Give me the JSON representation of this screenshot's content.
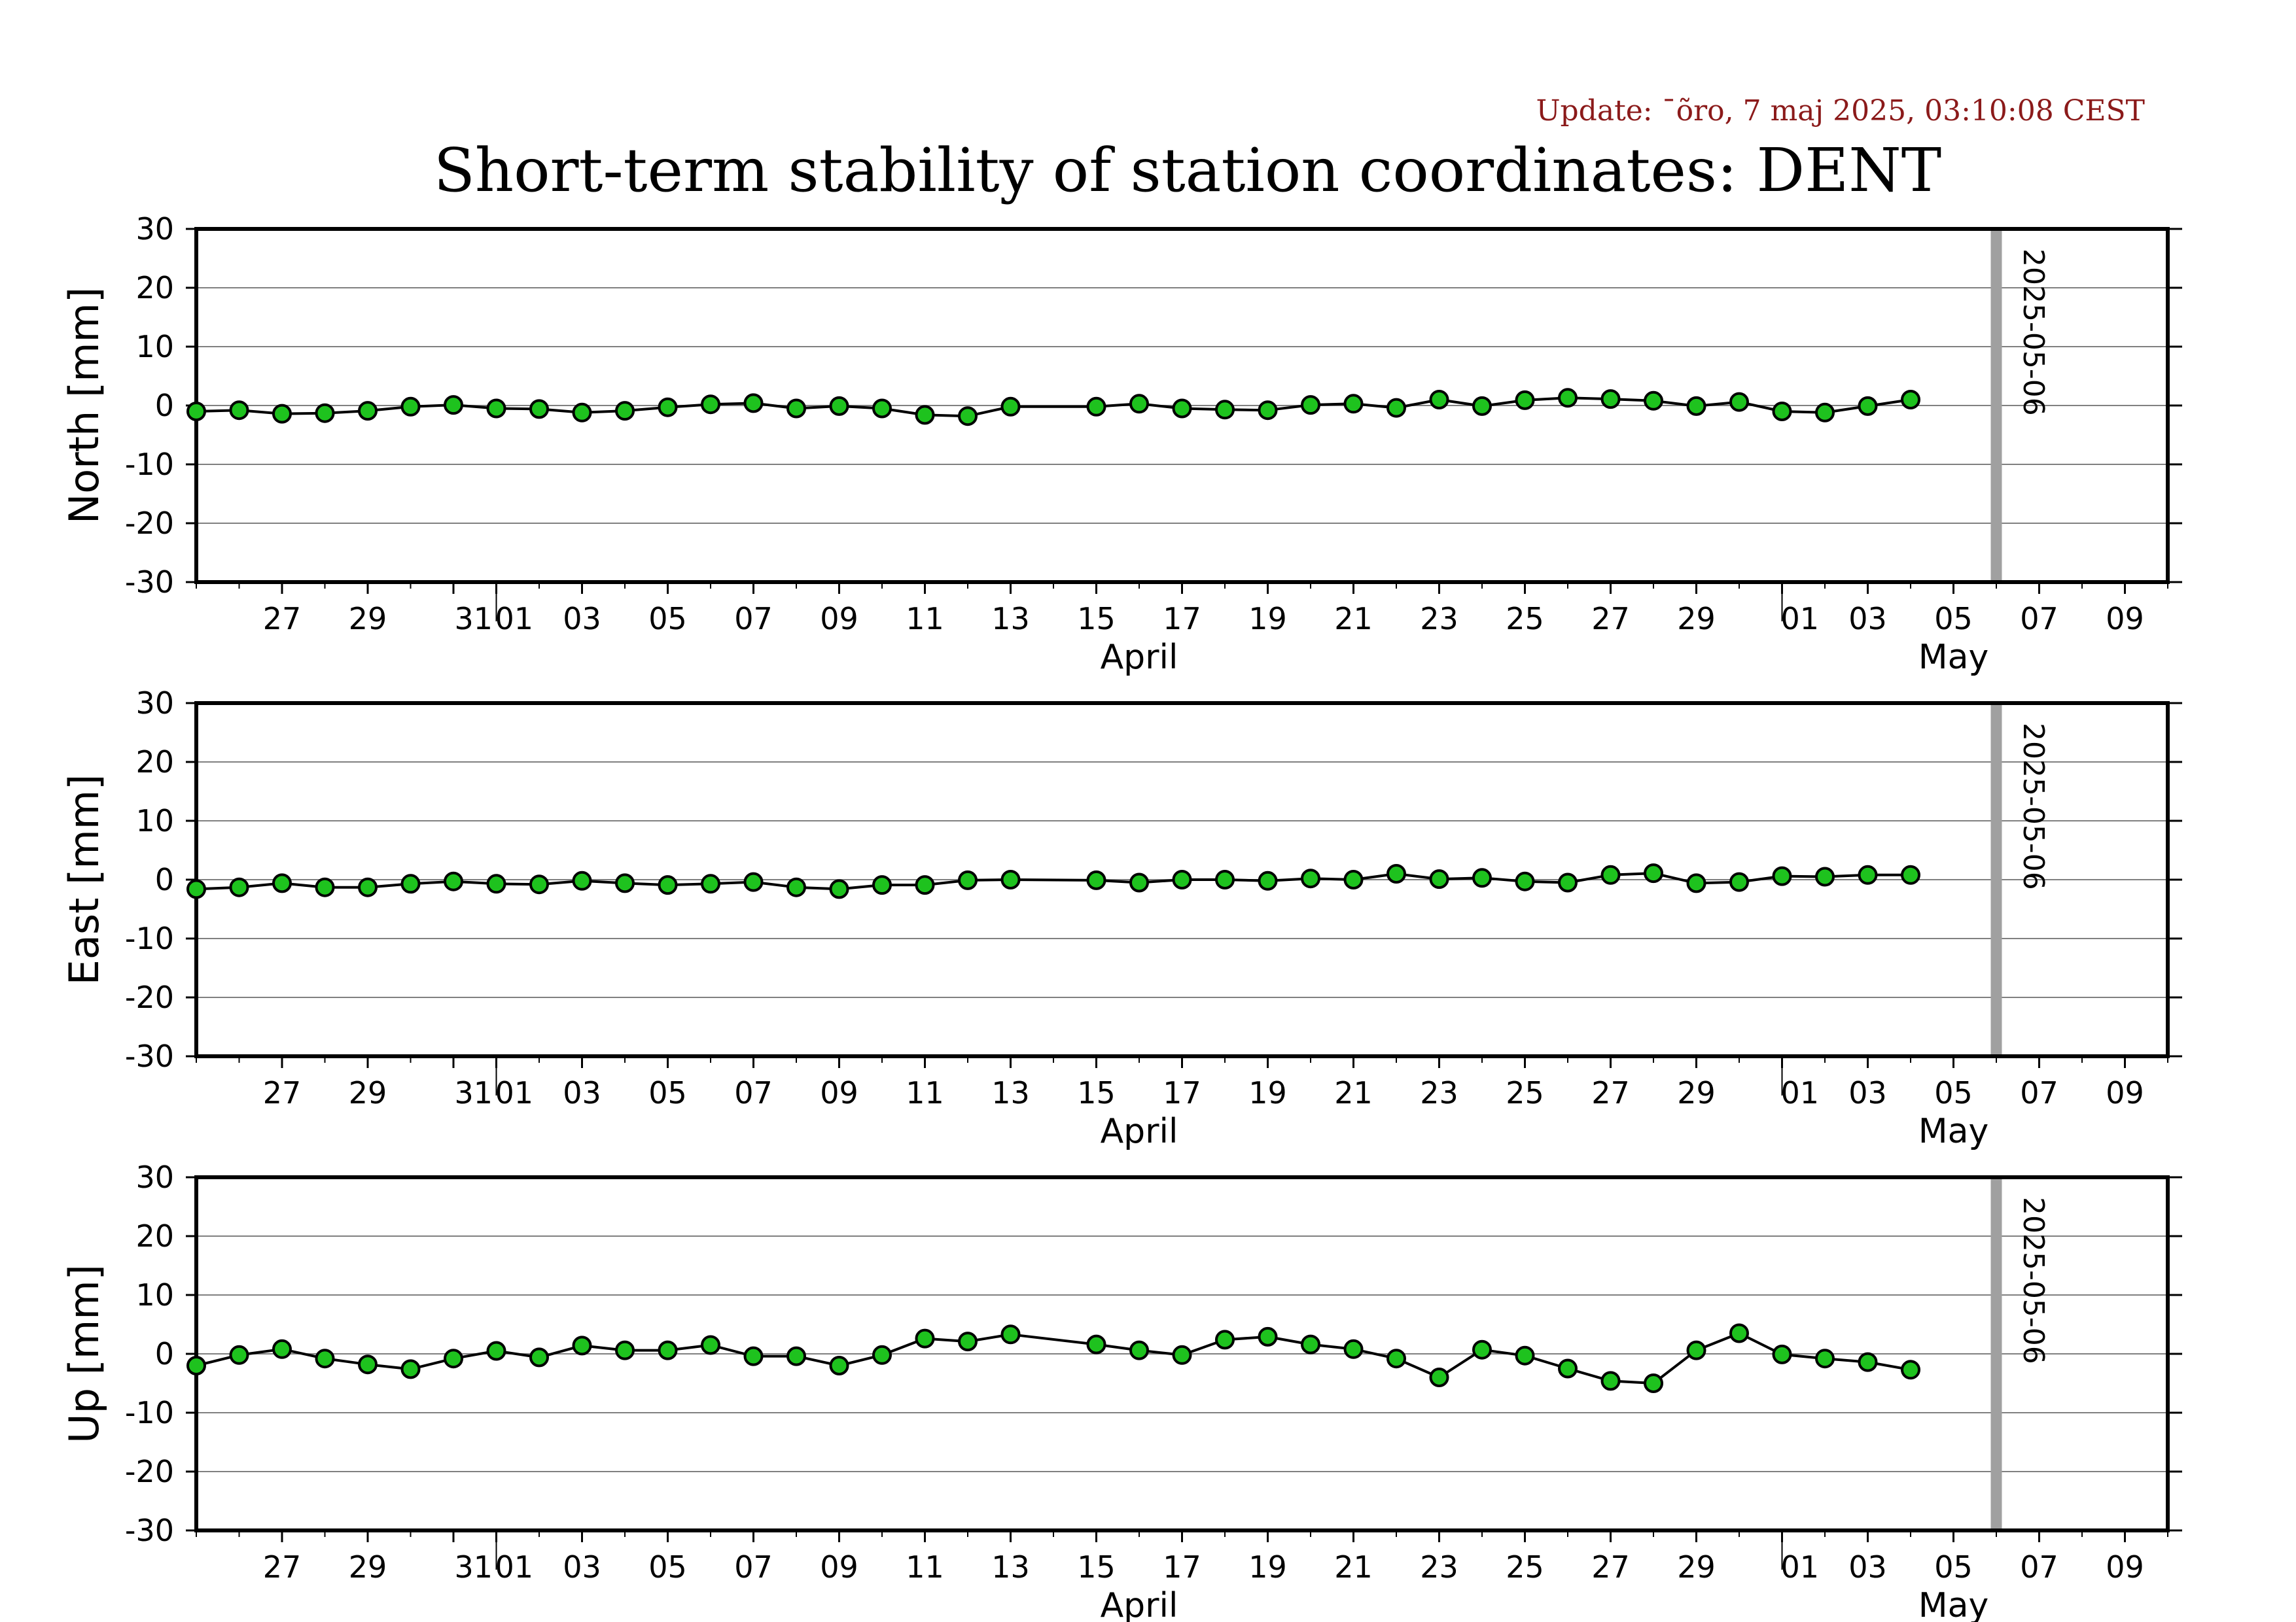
{
  "header": {
    "update": "Update: ¯õro, 7 maj 2025, 03:10:08 CEST",
    "title": "Short-term stability of station coordinates: DENT"
  },
  "colors": {
    "marker_fill": "#1ec21e",
    "marker_stroke": "#000000",
    "line": "#000000",
    "grid": "#808080",
    "ref_line": "#a0a0a0"
  },
  "chart_data": [
    {
      "type": "line",
      "ylabel": "North [mm]",
      "ylim": [
        -30,
        30
      ],
      "yticks": [
        -30,
        -20,
        -10,
        0,
        10,
        20,
        30
      ],
      "xlim": [
        "2025-03-25",
        "2025-05-10"
      ],
      "grid": true,
      "x_ticks": [
        {
          "date": "2025-03-27",
          "label": "27"
        },
        {
          "date": "2025-03-29",
          "label": "29"
        },
        {
          "date": "2025-03-31",
          "label": "31"
        },
        {
          "date": "2025-04-01",
          "label": "01"
        },
        {
          "date": "2025-04-03",
          "label": "03"
        },
        {
          "date": "2025-04-05",
          "label": "05"
        },
        {
          "date": "2025-04-07",
          "label": "07"
        },
        {
          "date": "2025-04-09",
          "label": "09"
        },
        {
          "date": "2025-04-11",
          "label": "11"
        },
        {
          "date": "2025-04-13",
          "label": "13"
        },
        {
          "date": "2025-04-15",
          "label": "15"
        },
        {
          "date": "2025-04-17",
          "label": "17"
        },
        {
          "date": "2025-04-19",
          "label": "19"
        },
        {
          "date": "2025-04-21",
          "label": "21"
        },
        {
          "date": "2025-04-23",
          "label": "23"
        },
        {
          "date": "2025-04-25",
          "label": "25"
        },
        {
          "date": "2025-04-27",
          "label": "27"
        },
        {
          "date": "2025-04-29",
          "label": "29"
        },
        {
          "date": "2025-05-01",
          "label": "01"
        },
        {
          "date": "2025-05-03",
          "label": "03"
        },
        {
          "date": "2025-05-05",
          "label": "05"
        },
        {
          "date": "2025-05-07",
          "label": "07"
        },
        {
          "date": "2025-05-09",
          "label": "09"
        }
      ],
      "month_labels": [
        {
          "label": "April",
          "date": "2025-04-16"
        },
        {
          "label": "May",
          "date": "2025-05-05"
        }
      ],
      "month_boundaries": [
        "2025-04-01",
        "2025-05-01"
      ],
      "reference_line": {
        "date": "2025-05-06",
        "label": "2025-05-06"
      },
      "series": [
        {
          "x": [
            "2025-03-25",
            "2025-03-26",
            "2025-03-27",
            "2025-03-28",
            "2025-03-29",
            "2025-03-30",
            "2025-03-31",
            "2025-04-01",
            "2025-04-02",
            "2025-04-03",
            "2025-04-04",
            "2025-04-05",
            "2025-04-06",
            "2025-04-07",
            "2025-04-08",
            "2025-04-09",
            "2025-04-10",
            "2025-04-11",
            "2025-04-12",
            "2025-04-13",
            "2025-04-15",
            "2025-04-16",
            "2025-04-17",
            "2025-04-18",
            "2025-04-19",
            "2025-04-20",
            "2025-04-21",
            "2025-04-22",
            "2025-04-23",
            "2025-04-24",
            "2025-04-25",
            "2025-04-26",
            "2025-04-27",
            "2025-04-28",
            "2025-04-29",
            "2025-04-30",
            "2025-05-01",
            "2025-05-02",
            "2025-05-03",
            "2025-05-04"
          ],
          "y": [
            -1.0,
            -0.8,
            -1.4,
            -1.3,
            -0.9,
            -0.2,
            0.1,
            -0.5,
            -0.6,
            -1.2,
            -0.9,
            -0.3,
            0.2,
            0.4,
            -0.5,
            -0.1,
            -0.5,
            -1.6,
            -1.8,
            -0.2,
            -0.2,
            0.3,
            -0.5,
            -0.7,
            -0.8,
            0.1,
            0.3,
            -0.4,
            1.0,
            -0.1,
            0.9,
            1.3,
            1.1,
            0.8,
            -0.1,
            0.6,
            -1.0,
            -1.2,
            -0.1,
            1.0
          ]
        }
      ]
    },
    {
      "type": "line",
      "ylabel": "East [mm]",
      "ylim": [
        -30,
        30
      ],
      "yticks": [
        -30,
        -20,
        -10,
        0,
        10,
        20,
        30
      ],
      "xlim": [
        "2025-03-25",
        "2025-05-10"
      ],
      "grid": true,
      "x_ticks": [
        {
          "date": "2025-03-27",
          "label": "27"
        },
        {
          "date": "2025-03-29",
          "label": "29"
        },
        {
          "date": "2025-03-31",
          "label": "31"
        },
        {
          "date": "2025-04-01",
          "label": "01"
        },
        {
          "date": "2025-04-03",
          "label": "03"
        },
        {
          "date": "2025-04-05",
          "label": "05"
        },
        {
          "date": "2025-04-07",
          "label": "07"
        },
        {
          "date": "2025-04-09",
          "label": "09"
        },
        {
          "date": "2025-04-11",
          "label": "11"
        },
        {
          "date": "2025-04-13",
          "label": "13"
        },
        {
          "date": "2025-04-15",
          "label": "15"
        },
        {
          "date": "2025-04-17",
          "label": "17"
        },
        {
          "date": "2025-04-19",
          "label": "19"
        },
        {
          "date": "2025-04-21",
          "label": "21"
        },
        {
          "date": "2025-04-23",
          "label": "23"
        },
        {
          "date": "2025-04-25",
          "label": "25"
        },
        {
          "date": "2025-04-27",
          "label": "27"
        },
        {
          "date": "2025-04-29",
          "label": "29"
        },
        {
          "date": "2025-05-01",
          "label": "01"
        },
        {
          "date": "2025-05-03",
          "label": "03"
        },
        {
          "date": "2025-05-05",
          "label": "05"
        },
        {
          "date": "2025-05-07",
          "label": "07"
        },
        {
          "date": "2025-05-09",
          "label": "09"
        }
      ],
      "month_labels": [
        {
          "label": "April",
          "date": "2025-04-16"
        },
        {
          "label": "May",
          "date": "2025-05-05"
        }
      ],
      "month_boundaries": [
        "2025-04-01",
        "2025-05-01"
      ],
      "reference_line": {
        "date": "2025-05-06",
        "label": "2025-05-06"
      },
      "series": [
        {
          "x": [
            "2025-03-25",
            "2025-03-26",
            "2025-03-27",
            "2025-03-28",
            "2025-03-29",
            "2025-03-30",
            "2025-03-31",
            "2025-04-01",
            "2025-04-02",
            "2025-04-03",
            "2025-04-04",
            "2025-04-05",
            "2025-04-06",
            "2025-04-07",
            "2025-04-08",
            "2025-04-09",
            "2025-04-10",
            "2025-04-11",
            "2025-04-12",
            "2025-04-13",
            "2025-04-15",
            "2025-04-16",
            "2025-04-17",
            "2025-04-18",
            "2025-04-19",
            "2025-04-20",
            "2025-04-21",
            "2025-04-22",
            "2025-04-23",
            "2025-04-24",
            "2025-04-25",
            "2025-04-26",
            "2025-04-27",
            "2025-04-28",
            "2025-04-29",
            "2025-04-30",
            "2025-05-01",
            "2025-05-02",
            "2025-05-03",
            "2025-05-04"
          ],
          "y": [
            -1.6,
            -1.3,
            -0.6,
            -1.3,
            -1.3,
            -0.7,
            -0.3,
            -0.7,
            -0.8,
            -0.2,
            -0.6,
            -0.9,
            -0.7,
            -0.4,
            -1.3,
            -1.6,
            -0.9,
            -0.9,
            -0.1,
            0.0,
            -0.1,
            -0.5,
            0.0,
            0.0,
            -0.2,
            0.2,
            0.0,
            1.0,
            0.1,
            0.3,
            -0.3,
            -0.5,
            0.8,
            1.1,
            -0.6,
            -0.4,
            0.6,
            0.5,
            0.8,
            0.8
          ]
        }
      ]
    },
    {
      "type": "line",
      "ylabel": "Up [mm]",
      "ylim": [
        -30,
        30
      ],
      "yticks": [
        -30,
        -20,
        -10,
        0,
        10,
        20,
        30
      ],
      "xlim": [
        "2025-03-25",
        "2025-05-10"
      ],
      "grid": true,
      "x_ticks": [
        {
          "date": "2025-03-27",
          "label": "27"
        },
        {
          "date": "2025-03-29",
          "label": "29"
        },
        {
          "date": "2025-03-31",
          "label": "31"
        },
        {
          "date": "2025-04-01",
          "label": "01"
        },
        {
          "date": "2025-04-03",
          "label": "03"
        },
        {
          "date": "2025-04-05",
          "label": "05"
        },
        {
          "date": "2025-04-07",
          "label": "07"
        },
        {
          "date": "2025-04-09",
          "label": "09"
        },
        {
          "date": "2025-04-11",
          "label": "11"
        },
        {
          "date": "2025-04-13",
          "label": "13"
        },
        {
          "date": "2025-04-15",
          "label": "15"
        },
        {
          "date": "2025-04-17",
          "label": "17"
        },
        {
          "date": "2025-04-19",
          "label": "19"
        },
        {
          "date": "2025-04-21",
          "label": "21"
        },
        {
          "date": "2025-04-23",
          "label": "23"
        },
        {
          "date": "2025-04-25",
          "label": "25"
        },
        {
          "date": "2025-04-27",
          "label": "27"
        },
        {
          "date": "2025-04-29",
          "label": "29"
        },
        {
          "date": "2025-05-01",
          "label": "01"
        },
        {
          "date": "2025-05-03",
          "label": "03"
        },
        {
          "date": "2025-05-05",
          "label": "05"
        },
        {
          "date": "2025-05-07",
          "label": "07"
        },
        {
          "date": "2025-05-09",
          "label": "09"
        }
      ],
      "month_labels": [
        {
          "label": "April",
          "date": "2025-04-16"
        },
        {
          "label": "May",
          "date": "2025-05-05"
        }
      ],
      "month_boundaries": [
        "2025-04-01",
        "2025-05-01"
      ],
      "reference_line": {
        "date": "2025-05-06",
        "label": "2025-05-06"
      },
      "series": [
        {
          "x": [
            "2025-03-25",
            "2025-03-26",
            "2025-03-27",
            "2025-03-28",
            "2025-03-29",
            "2025-03-30",
            "2025-03-31",
            "2025-04-01",
            "2025-04-02",
            "2025-04-03",
            "2025-04-04",
            "2025-04-05",
            "2025-04-06",
            "2025-04-07",
            "2025-04-08",
            "2025-04-09",
            "2025-04-10",
            "2025-04-11",
            "2025-04-12",
            "2025-04-13",
            "2025-04-15",
            "2025-04-16",
            "2025-04-17",
            "2025-04-18",
            "2025-04-19",
            "2025-04-20",
            "2025-04-21",
            "2025-04-22",
            "2025-04-23",
            "2025-04-24",
            "2025-04-25",
            "2025-04-26",
            "2025-04-27",
            "2025-04-28",
            "2025-04-29",
            "2025-04-30",
            "2025-05-01",
            "2025-05-02",
            "2025-05-03",
            "2025-05-04"
          ],
          "y": [
            -2.0,
            -0.2,
            0.8,
            -0.8,
            -1.8,
            -2.6,
            -0.8,
            0.5,
            -0.6,
            1.4,
            0.6,
            0.6,
            1.5,
            -0.4,
            -0.4,
            -2.0,
            -0.2,
            2.6,
            2.1,
            3.3,
            1.6,
            0.6,
            -0.2,
            2.4,
            2.9,
            1.6,
            0.8,
            -0.8,
            -4.0,
            0.7,
            -0.3,
            -2.5,
            -4.6,
            -5.0,
            0.6,
            3.5,
            -0.1,
            -0.8,
            -1.4,
            -2.7
          ]
        }
      ]
    }
  ]
}
